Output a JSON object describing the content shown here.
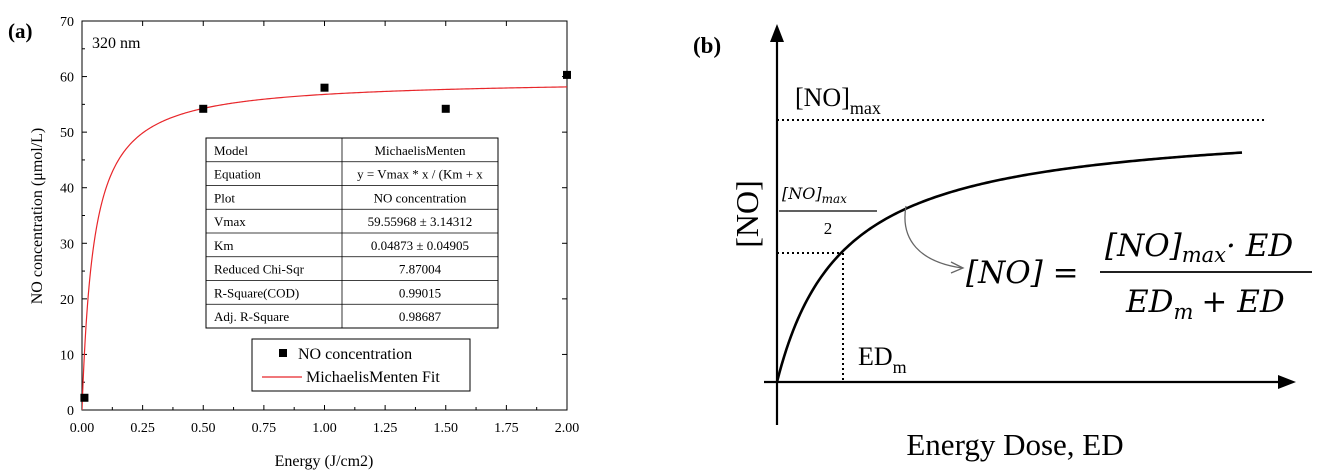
{
  "panel_a": {
    "label": "(a)",
    "annotation": "320 nm",
    "xlabel": "Energy (J/cm2)",
    "ylabel": "NO concentration (μmol/L)",
    "fit_table": [
      [
        "Model",
        "MichaelisMenten"
      ],
      [
        "Equation",
        "y = Vmax * x / (Km + x"
      ],
      [
        "Plot",
        "NO concentration"
      ],
      [
        "Vmax",
        "59.55968 ± 3.14312"
      ],
      [
        "Km",
        "0.04873 ± 0.04905"
      ],
      [
        "Reduced Chi-Sqr",
        "7.87004"
      ],
      [
        "R-Square(COD)",
        "0.99015"
      ],
      [
        "Adj. R-Square",
        "0.98687"
      ]
    ],
    "legend": [
      "NO concentration",
      "MichaelisMenten Fit"
    ]
  },
  "panel_b": {
    "label": "(b)",
    "y_axis_label": "[NO]",
    "max_label_base": "[NO]",
    "max_label_sub": "max",
    "half_numerator_base": "[NO]",
    "half_numerator_sub": "max",
    "half_denominator": "2",
    "edm_base": "ED",
    "edm_sub": "m",
    "x_axis_label": "Energy Dose, ED",
    "eq_lhs": "[NO] =",
    "eq_num_base": "[NO]",
    "eq_num_sub": "max",
    "eq_num_rest": "· ED",
    "eq_den_base": "ED",
    "eq_den_sub": "m",
    "eq_den_rest": "+ ED"
  },
  "chart_data": [
    {
      "type": "scatter",
      "xlabel": "Energy (J/cm2)",
      "ylabel": "NO concentration (μmol/L)",
      "xlim": [
        0,
        2
      ],
      "ylim": [
        0,
        70
      ],
      "xticks": [
        "0.00",
        "0.25",
        "0.50",
        "0.75",
        "1.00",
        "1.25",
        "1.50",
        "1.75",
        "2.00"
      ],
      "yticks": [
        "0",
        "10",
        "20",
        "30",
        "40",
        "50",
        "60",
        "70"
      ],
      "series": [
        {
          "name": "NO concentration",
          "x": [
            0.01,
            0.5,
            1.0,
            1.5,
            2.0
          ],
          "y": [
            2.2,
            54.2,
            58.0,
            54.2,
            60.3
          ],
          "color": "#000000"
        },
        {
          "name": "MichaelisMenten Fit",
          "model": "y = Vmax * x / (Km + x)",
          "Vmax": 59.55968,
          "Km": 0.04873,
          "color": "#e8262a"
        }
      ],
      "legend_position": "bottom-center"
    },
    {
      "type": "line",
      "xlabel": "Energy Dose, ED",
      "ylabel": "[NO]",
      "series": [
        {
          "model": "saturation",
          "color": "#000000"
        }
      ]
    }
  ]
}
